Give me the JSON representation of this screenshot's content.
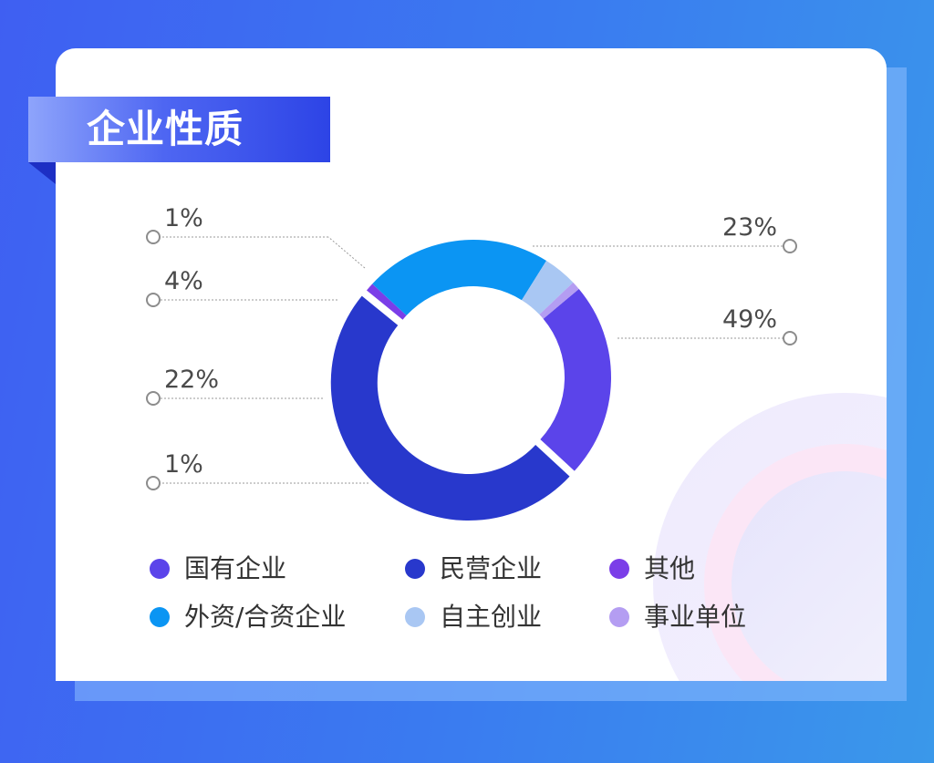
{
  "title": "企业性质",
  "chart_data": {
    "type": "pie",
    "donut": true,
    "title": "企业性质",
    "slices": [
      {
        "label": "国有企业",
        "value": 23,
        "value_label": "23%",
        "color": "#5b44ea"
      },
      {
        "label": "民营企业",
        "value": 49,
        "value_label": "49%",
        "color": "#2838cc"
      },
      {
        "label": "其他",
        "value": 1,
        "value_label": "1%",
        "color": "#7b3ee8"
      },
      {
        "label": "外资/合资企业",
        "value": 22,
        "value_label": "22%",
        "color": "#0b95f3"
      },
      {
        "label": "自主创业",
        "value": 4,
        "value_label": "4%",
        "color": "#a9c7f3"
      },
      {
        "label": "事业单位",
        "value": 1,
        "value_label": "1%",
        "color": "#b49df2"
      }
    ]
  }
}
